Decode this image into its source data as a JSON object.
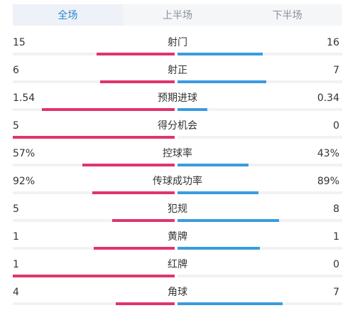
{
  "tabs": [
    {
      "label": "全场",
      "active": true
    },
    {
      "label": "上半场",
      "active": false
    },
    {
      "label": "下半场",
      "active": false
    }
  ],
  "stats": [
    {
      "label": "射门",
      "left": "15",
      "right": "16",
      "left_ratio": 0.484,
      "right_ratio": 0.516
    },
    {
      "label": "射正",
      "left": "6",
      "right": "7",
      "left_ratio": 0.462,
      "right_ratio": 0.538
    },
    {
      "label": "预期进球",
      "left": "1.54",
      "right": "0.34",
      "left_ratio": 0.819,
      "right_ratio": 0.181
    },
    {
      "label": "得分机会",
      "left": "5",
      "right": "0",
      "left_ratio": 1.0,
      "right_ratio": 0.0
    },
    {
      "label": "控球率",
      "left": "57%",
      "right": "43%",
      "left_ratio": 0.57,
      "right_ratio": 0.43
    },
    {
      "label": "传球成功率",
      "left": "92%",
      "right": "89%",
      "left_ratio": 0.508,
      "right_ratio": 0.492
    },
    {
      "label": "犯规",
      "left": "5",
      "right": "8",
      "left_ratio": 0.385,
      "right_ratio": 0.615
    },
    {
      "label": "黄牌",
      "left": "1",
      "right": "1",
      "left_ratio": 0.5,
      "right_ratio": 0.5
    },
    {
      "label": "红牌",
      "left": "1",
      "right": "0",
      "left_ratio": 1.0,
      "right_ratio": 0.0
    },
    {
      "label": "角球",
      "left": "4",
      "right": "7",
      "left_ratio": 0.364,
      "right_ratio": 0.636
    }
  ],
  "colors": {
    "left": "#e0356a",
    "right": "#3a9be0",
    "tab_active": "#2a86d8"
  }
}
